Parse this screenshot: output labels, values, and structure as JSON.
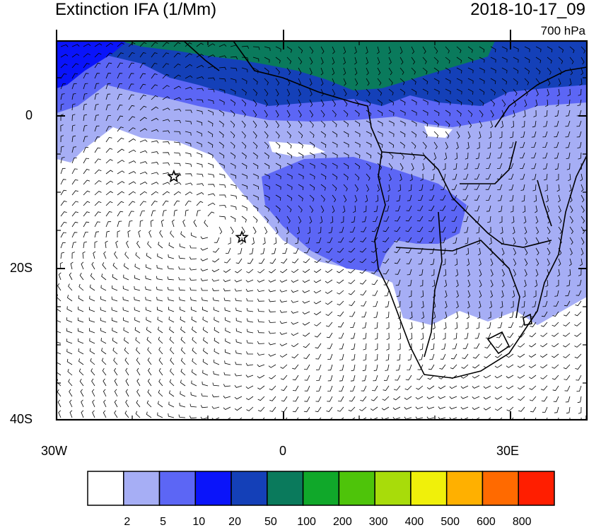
{
  "title": "Extinction IFA (1/Mm)",
  "date": "2018-10-17_09",
  "level": "700 hPa",
  "axes": {
    "y_labels": [
      {
        "text": "0",
        "lat": 0
      },
      {
        "text": "20S",
        "lat": -20
      },
      {
        "text": "40S",
        "lat": -40
      }
    ],
    "x_labels": [
      {
        "text": "30W",
        "lon": -30
      },
      {
        "text": "0",
        "lon": 0
      },
      {
        "text": "30E",
        "lon": 30
      }
    ]
  },
  "colorbar": {
    "colors": [
      "#ffffff",
      "#a6aef5",
      "#5c66f5",
      "#0a14fa",
      "#1440b8",
      "#0a7a5c",
      "#10a82a",
      "#4ec40a",
      "#a8dc0a",
      "#f0f00a",
      "#ffb000",
      "#ff6a00",
      "#ff1e00"
    ],
    "labels": [
      "2",
      "5",
      "10",
      "20",
      "50",
      "100",
      "200",
      "300",
      "400",
      "500",
      "600",
      "800"
    ]
  },
  "stars": [
    {
      "lon": -14.5,
      "lat": -8
    },
    {
      "lon": -5.5,
      "lat": -16
    }
  ]
}
